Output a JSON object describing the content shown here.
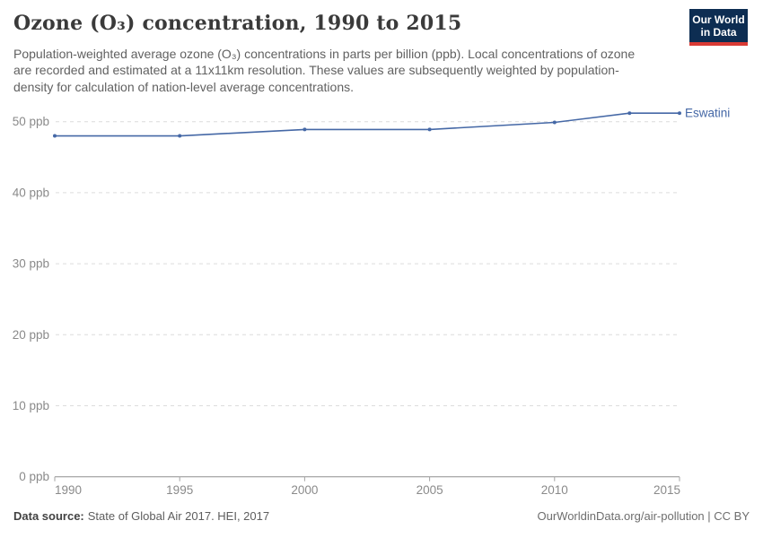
{
  "header": {
    "title": "Ozone (O₃) concentration, 1990 to 2015",
    "subtitle": "Population-weighted average ozone (O₃) concentrations in parts per billion (ppb). Local concentrations of ozone are recorded and estimated at a 11x11km resolution. These values are subsequently weighted by population-density for calculation of nation-level average concentrations.",
    "logo": {
      "line1": "Our World",
      "line2": "in Data"
    }
  },
  "chart_data": {
    "type": "line",
    "x": [
      1990,
      1995,
      2000,
      2005,
      2010,
      2013,
      2015
    ],
    "series": [
      {
        "name": "Eswatini",
        "values": [
          48.0,
          48.0,
          48.9,
          48.9,
          49.9,
          51.2,
          51.2
        ]
      }
    ],
    "xticks": [
      1990,
      1995,
      2000,
      2005,
      2010,
      2015
    ],
    "yticks": [
      0,
      10,
      20,
      30,
      40,
      50
    ],
    "ytick_suffix": " ppb",
    "xlim": [
      1990,
      2015
    ],
    "ylim": [
      0,
      53
    ],
    "xlabel": "",
    "ylabel": "",
    "grid": "horizontal-dashed",
    "legend_position": "line-end-label"
  },
  "colors": {
    "line": "#4568a6",
    "entity_label": "#4568a6",
    "logo_background": "#0d2d52",
    "logo_underline": "#d93a34"
  },
  "footer": {
    "source_label": "Data source:",
    "source_value": "State of Global Air 2017. HEI, 2017",
    "credit": "OurWorldinData.org/air-pollution | CC BY"
  }
}
